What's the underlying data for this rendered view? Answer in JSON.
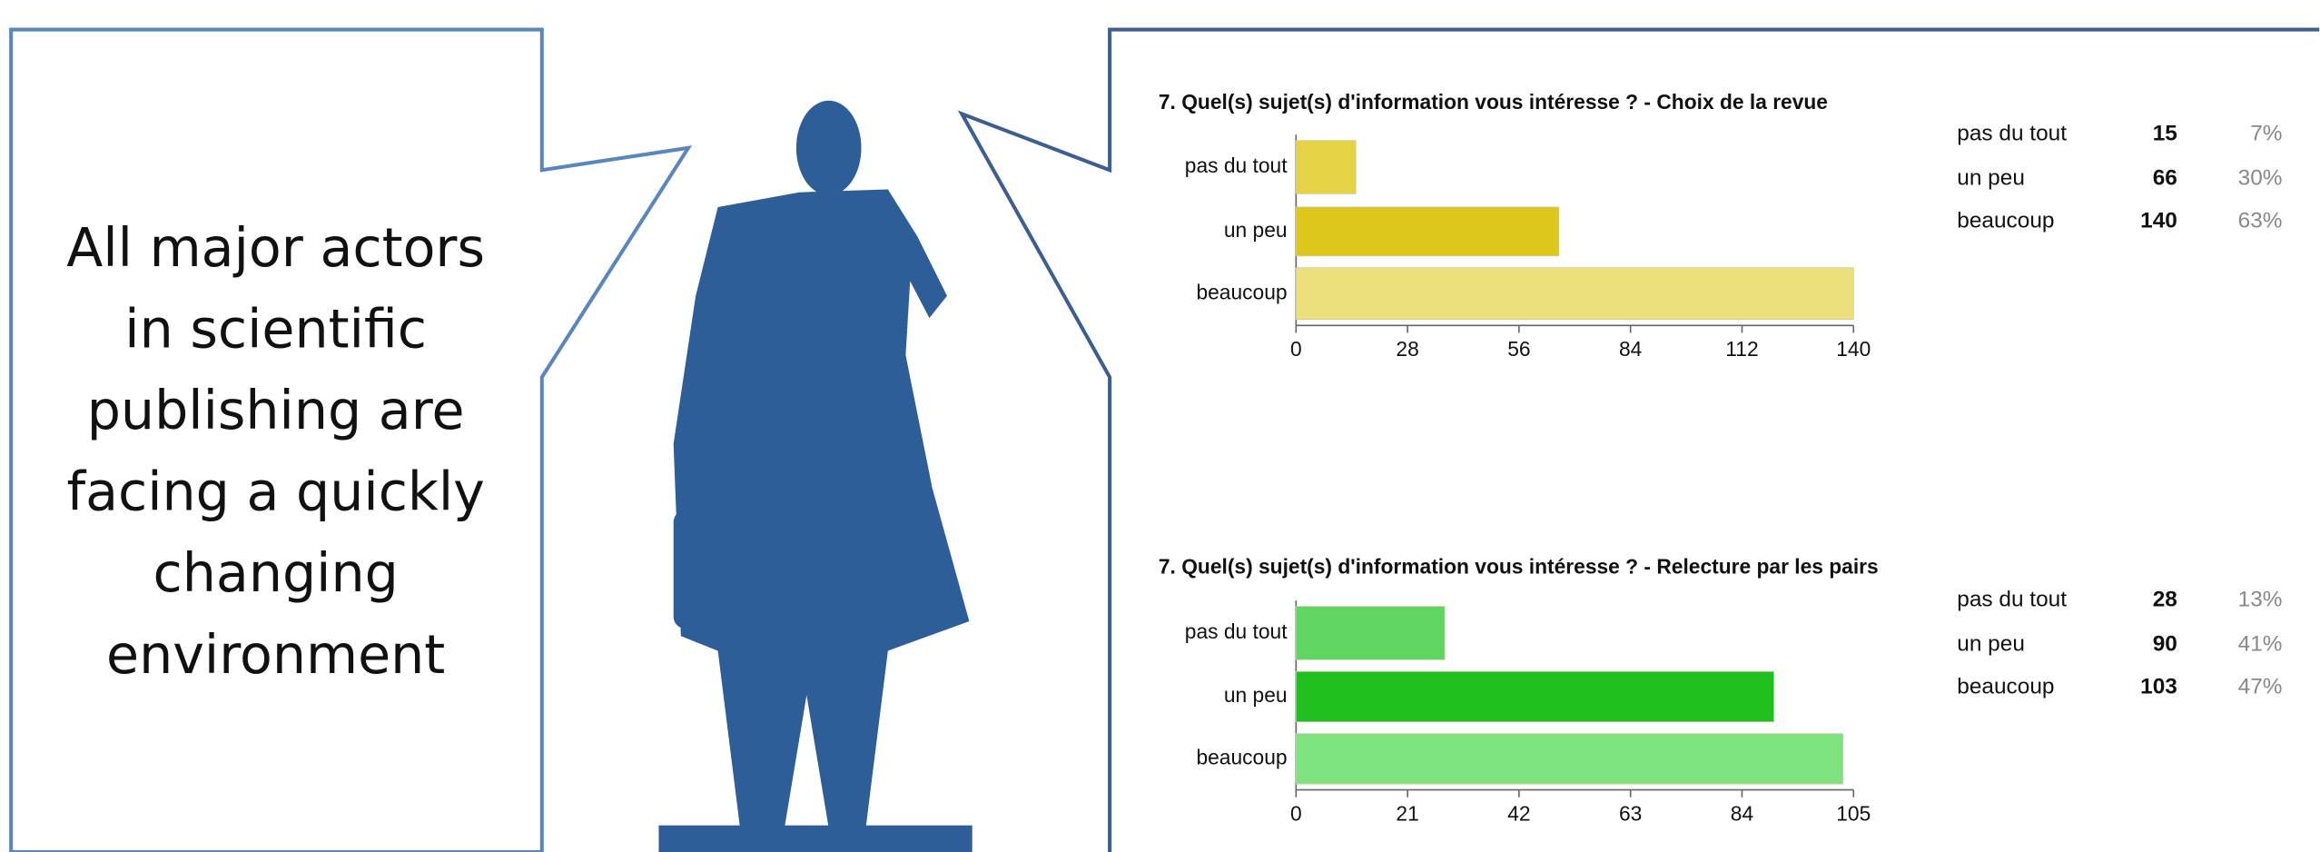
{
  "callout": {
    "lines": [
      "All major actors",
      "in scientific",
      "publishing are",
      "facing a quickly",
      "changing",
      "environment"
    ]
  },
  "chart_data": [
    {
      "type": "bar",
      "orientation": "horizontal",
      "title": "7. Quel(s) sujet(s) d'information vous intéresse ? - Choix de la revue",
      "categories": [
        "pas du tout",
        "un peu",
        "beaucoup"
      ],
      "values": [
        15,
        66,
        140
      ],
      "colors": [
        "#e6d345",
        "#dcc71a",
        "#ece07c"
      ],
      "xlim": [
        0,
        140
      ],
      "xticks": [
        0,
        28,
        56,
        84,
        112,
        140
      ],
      "share_labels": [
        "7%",
        "30%",
        "63%"
      ]
    },
    {
      "type": "bar",
      "orientation": "horizontal",
      "title": "7. Quel(s) sujet(s) d'information vous intéresse ? - Relecture par les pairs",
      "categories": [
        "pas du tout",
        "un peu",
        "beaucoup"
      ],
      "values": [
        28,
        90,
        103
      ],
      "colors": [
        "#5fd65f",
        "#1fbf1f",
        "#7ee27e"
      ],
      "xlim": [
        0,
        105
      ],
      "xticks": [
        0,
        21,
        42,
        63,
        84,
        105
      ],
      "share_labels": [
        "13%",
        "41%",
        "47%"
      ]
    }
  ]
}
